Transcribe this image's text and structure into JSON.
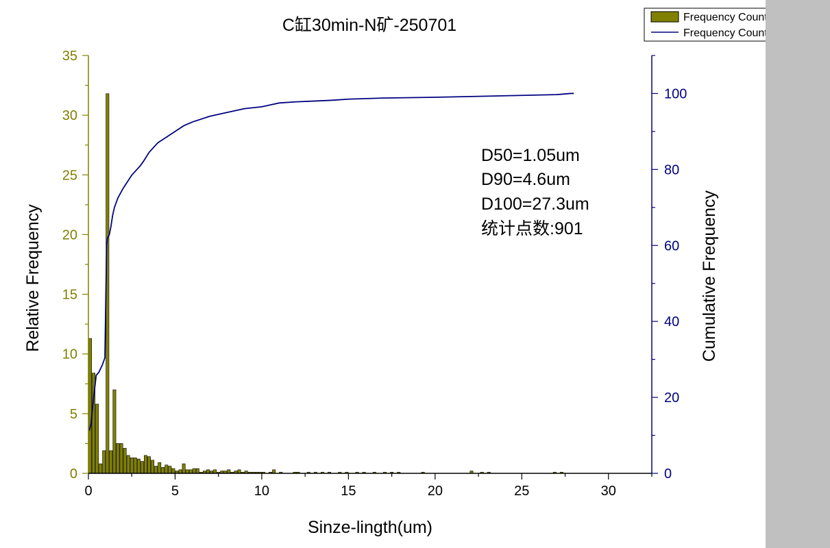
{
  "colors": {
    "bar_fill": "#808000",
    "bar_stroke": "#000000",
    "line": "#000080",
    "left_axis": "#808000",
    "right_axis": "#000080",
    "side_panel": "#c0c0c0"
  },
  "chart_data": {
    "type": "bar",
    "title": "C缸30min-N矿-250701",
    "xlabel": "Sinze-lingth(um)",
    "ylabel": "Relative Frequency",
    "y2label": "Cumulative Frequency",
    "xlim": [
      0,
      32.5
    ],
    "ylim": [
      0,
      35
    ],
    "y2lim": [
      0,
      110
    ],
    "x_ticks": [
      0,
      5,
      10,
      15,
      20,
      25,
      30
    ],
    "y_ticks": [
      0,
      5,
      10,
      15,
      20,
      25,
      30,
      35
    ],
    "y2_ticks": [
      0,
      20,
      40,
      60,
      80,
      100
    ],
    "grid": false,
    "legend_position": "top-right",
    "legend": [
      {
        "label": "Frequency Counts of A",
        "kind": "bar"
      },
      {
        "label": "Frequency Counts of A",
        "kind": "line"
      }
    ],
    "annotations": [
      "D50=1.05um",
      "D90=4.6um",
      "D100=27.3um",
      "统计点数:901"
    ],
    "series": [
      {
        "name": "Frequency Counts of A",
        "kind": "bar",
        "bar_width": 0.17,
        "x": [
          0.1,
          0.3,
          0.5,
          0.7,
          0.9,
          1.1,
          1.3,
          1.5,
          1.7,
          1.9,
          2.1,
          2.3,
          2.5,
          2.7,
          2.9,
          3.1,
          3.3,
          3.5,
          3.7,
          3.9,
          4.1,
          4.3,
          4.5,
          4.7,
          4.9,
          5.1,
          5.3,
          5.5,
          5.7,
          5.9,
          6.1,
          6.3,
          6.5,
          6.7,
          6.9,
          7.1,
          7.3,
          7.5,
          7.7,
          7.9,
          8.1,
          8.3,
          8.5,
          8.7,
          8.9,
          9.1,
          9.3,
          9.5,
          9.7,
          9.9,
          10.1,
          10.5,
          10.7,
          11.1,
          11.9,
          12.1,
          12.7,
          13.1,
          13.5,
          13.9,
          14.5,
          14.9,
          15.5,
          15.9,
          16.5,
          17.1,
          17.5,
          17.9,
          19.3,
          22.1,
          22.7,
          23.1,
          26.9,
          27.3
        ],
        "values": [
          11.3,
          8.4,
          5.8,
          0.8,
          1.9,
          31.8,
          1.9,
          7.0,
          2.5,
          2.5,
          2.1,
          1.5,
          1.3,
          1.3,
          1.2,
          1.0,
          1.5,
          1.4,
          1.1,
          0.6,
          0.9,
          0.5,
          0.7,
          0.6,
          0.4,
          0.2,
          0.3,
          0.8,
          0.3,
          0.3,
          0.4,
          0.4,
          0.1,
          0.2,
          0.3,
          0.2,
          0.3,
          0.1,
          0.2,
          0.2,
          0.3,
          0.1,
          0.2,
          0.3,
          0.1,
          0.2,
          0.1,
          0.1,
          0.1,
          0.1,
          0.1,
          0.1,
          0.3,
          0.1,
          0.1,
          0.1,
          0.1,
          0.1,
          0.1,
          0.1,
          0.1,
          0.1,
          0.1,
          0.1,
          0.1,
          0.1,
          0.1,
          0.1,
          0.1,
          0.2,
          0.1,
          0.1,
          0.1,
          0.1
        ]
      },
      {
        "name": "Frequency Counts of A",
        "kind": "line",
        "axis": "right",
        "x": [
          0.05,
          0.15,
          0.3,
          0.45,
          0.6,
          0.8,
          0.95,
          1.0,
          1.05,
          1.1,
          1.2,
          1.3,
          1.4,
          1.5,
          1.7,
          2.0,
          2.5,
          3.0,
          3.2,
          3.5,
          4.0,
          4.5,
          5.0,
          5.5,
          6.0,
          7.0,
          8.0,
          9.0,
          10.0,
          10.5,
          11.0,
          12.0,
          13.0,
          14.0,
          15.0,
          17.0,
          20.0,
          23.0,
          25.0,
          27.0,
          27.3,
          27.8,
          28.0
        ],
        "values": [
          11.3,
          13.0,
          20.0,
          25.8,
          26.6,
          28.5,
          30.4,
          45.0,
          60.0,
          62.0,
          62.7,
          65.0,
          68.0,
          70.0,
          72.5,
          75.0,
          78.5,
          81.0,
          82.3,
          84.5,
          87.0,
          88.5,
          90.0,
          91.5,
          92.5,
          94.0,
          95.0,
          96.0,
          96.5,
          97.0,
          97.5,
          97.8,
          98.0,
          98.2,
          98.5,
          98.8,
          99.0,
          99.3,
          99.5,
          99.7,
          99.8,
          100.0,
          100.0
        ]
      }
    ]
  }
}
